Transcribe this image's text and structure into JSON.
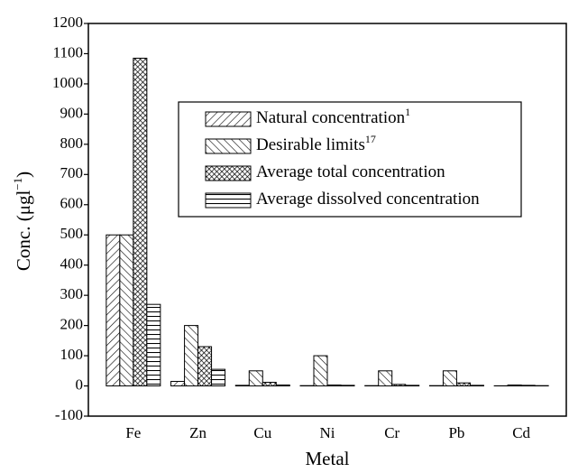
{
  "chart_data": {
    "type": "bar",
    "xlabel": "Metal",
    "ylabel": {
      "text": "Conc. (μgl",
      "sup": "−1",
      "suffix": ")"
    },
    "categories": [
      "Fe",
      "Zn",
      "Cu",
      "Ni",
      "Cr",
      "Pb",
      "Cd"
    ],
    "series": [
      {
        "name": "Natural concentration",
        "sup": "1",
        "color": "#000000",
        "pattern": "diag-forward",
        "values": [
          500,
          15,
          2,
          1,
          1,
          1,
          0.5
        ]
      },
      {
        "name": "Desirable limits",
        "sup": "17",
        "color": "#000000",
        "pattern": "diag-back",
        "values": [
          500,
          200,
          50,
          100,
          50,
          50,
          3
        ]
      },
      {
        "name": "Average total concentration",
        "color": "#000000",
        "pattern": "crosshatch",
        "values": [
          1085,
          130,
          12,
          3,
          5,
          10,
          2
        ]
      },
      {
        "name": "Average dissolved concentration",
        "color": "#000000",
        "pattern": "horizontal",
        "values": [
          270,
          55,
          3,
          2,
          2,
          2,
          1
        ]
      }
    ],
    "ylim": [
      -100,
      1200
    ],
    "yticks": [
      -100,
      0,
      100,
      200,
      300,
      400,
      500,
      600,
      700,
      800,
      900,
      1000,
      1100,
      1200
    ],
    "legend": "upper-right"
  }
}
